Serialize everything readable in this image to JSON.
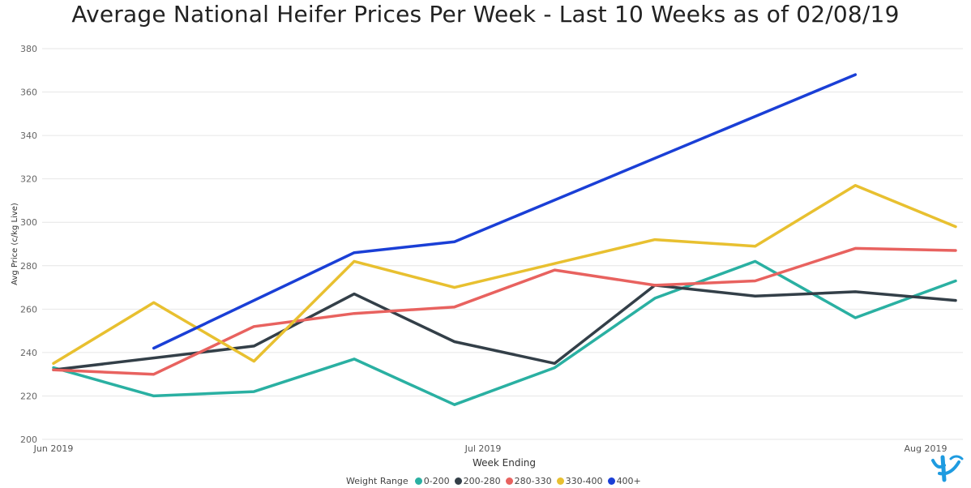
{
  "title": "Average National Heifer Prices Per Week - Last 10 Weeks as of 02/08/19",
  "chart_data": {
    "type": "line",
    "title": "Average National Heifer Prices Per Week - Last 10 Weeks as of 02/08/19",
    "xlabel": "Week Ending",
    "ylabel": "Avg Price (c/kg Live)",
    "x_ticks": [
      "Jun 2019",
      "Jul 2019",
      "Aug 2019"
    ],
    "x_tick_dates": [
      "2019-06-01",
      "2019-07-01",
      "2019-08-01"
    ],
    "y_ticks": [
      200,
      220,
      240,
      260,
      280,
      300,
      320,
      340,
      360,
      380
    ],
    "ylim": [
      200,
      380
    ],
    "xlim": [
      "2019-06-01",
      "2019-08-03"
    ],
    "grid": true,
    "legend_title": "Weight Range",
    "legend_position": "bottom",
    "x": [
      "2019-06-01",
      "2019-06-08",
      "2019-06-15",
      "2019-06-22",
      "2019-06-29",
      "2019-07-06",
      "2019-07-13",
      "2019-07-20",
      "2019-07-27",
      "2019-08-03"
    ],
    "series": [
      {
        "name": "0-200",
        "color": "#2ab0a2",
        "values": [
          233,
          220,
          222,
          237,
          216,
          233,
          265,
          282,
          256,
          273
        ]
      },
      {
        "name": "200-280",
        "color": "#333f48",
        "values": [
          232,
          null,
          243,
          267,
          245,
          235,
          271,
          266,
          268,
          264
        ]
      },
      {
        "name": "280-330",
        "color": "#e8625f",
        "values": [
          232,
          230,
          252,
          258,
          261,
          278,
          271,
          273,
          288,
          287
        ]
      },
      {
        "name": "330-400",
        "color": "#e8c030",
        "values": [
          235,
          263,
          236,
          282,
          270,
          null,
          292,
          289,
          317,
          298
        ]
      },
      {
        "name": "400+",
        "color": "#1a3fd6",
        "values": [
          null,
          242,
          null,
          286,
          291,
          null,
          null,
          null,
          368,
          null
        ]
      }
    ]
  }
}
